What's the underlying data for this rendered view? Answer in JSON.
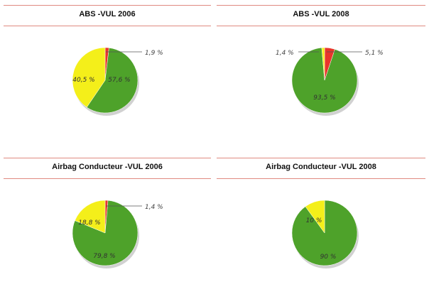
{
  "colors": {
    "green": "#4ea22a",
    "yellow": "#f4ef1a",
    "red": "#e8352b",
    "rule": "#e08a80"
  },
  "chart_data": [
    {
      "type": "pie",
      "title": "ABS -VUL 2006",
      "slices": [
        {
          "label": "57,6 %",
          "value": 57.6,
          "color": "green"
        },
        {
          "label": "40,5 %",
          "value": 40.5,
          "color": "yellow"
        },
        {
          "label": "1,9 %",
          "value": 1.9,
          "color": "red"
        }
      ]
    },
    {
      "type": "pie",
      "title": "ABS -VUL 2008",
      "slices": [
        {
          "label": "93,5 %",
          "value": 93.5,
          "color": "green"
        },
        {
          "label": "1,4 %",
          "value": 1.4,
          "color": "yellow"
        },
        {
          "label": "5,1 %",
          "value": 5.1,
          "color": "red"
        }
      ]
    },
    {
      "type": "pie",
      "title": "Airbag Conducteur -VUL 2006",
      "slices": [
        {
          "label": "79,8 %",
          "value": 79.8,
          "color": "green"
        },
        {
          "label": "18,8 %",
          "value": 18.8,
          "color": "yellow"
        },
        {
          "label": "1,4 %",
          "value": 1.4,
          "color": "red"
        }
      ]
    },
    {
      "type": "pie",
      "title": "Airbag Conducteur -VUL 2008",
      "slices": [
        {
          "label": "90 %",
          "value": 90,
          "color": "green"
        },
        {
          "label": "10 %",
          "value": 10,
          "color": "yellow"
        }
      ]
    }
  ]
}
